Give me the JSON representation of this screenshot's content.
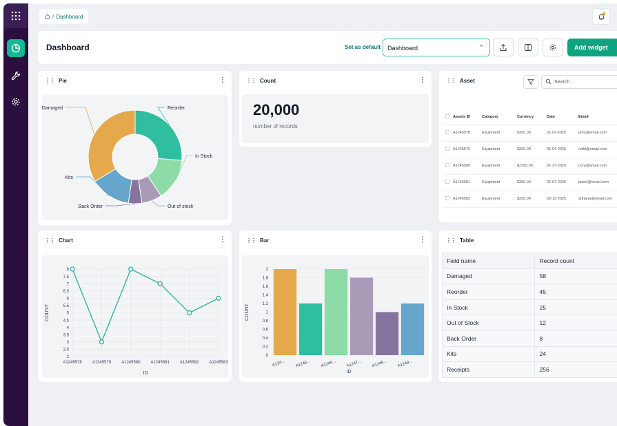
{
  "breadcrumb": {
    "current": "Dashboard"
  },
  "header": {
    "title": "Dashboard",
    "set_default": "Set as default",
    "selected_dashboard": "Dashboard",
    "add_widget": "Add widget"
  },
  "pie": {
    "title": "Pie",
    "chart_data": {
      "type": "pie",
      "title": "Pie",
      "categories": [
        "Damaged",
        "Reorder",
        "In Stock",
        "Out of stock",
        "Back Order",
        "Kits"
      ],
      "values": [
        58,
        45,
        25,
        12,
        8,
        24
      ],
      "colors": [
        "#e5a84b",
        "#2fbfa0",
        "#8ddba6",
        "#a99ab8",
        "#85759e",
        "#67a6cc"
      ]
    }
  },
  "count": {
    "title": "Count",
    "value": "20,000",
    "label": "number of records"
  },
  "asset": {
    "title": "Asset",
    "search_placeholder": "Search",
    "columns": [
      "Assets ID",
      "Category",
      "Currency",
      "Date",
      "Email"
    ],
    "rows": [
      [
        "A1245578",
        "Equipment",
        "$200.00",
        "01-02-2025",
        "amy@email.com"
      ],
      [
        "A1245579",
        "Equipment",
        "$200.00",
        "01-04-2025",
        "redd@email.com"
      ],
      [
        "A1245580",
        "Equipment",
        "$2350.00",
        "01-27-2025",
        "cory@email.com"
      ],
      [
        "A1245581",
        "Equipment",
        "$200.00",
        "02-07-2025",
        "jason@email.com"
      ],
      [
        "A1245582",
        "Equipment",
        "$325.00",
        "02-12-2025",
        "adriana@email.com"
      ]
    ]
  },
  "line": {
    "title": "Chart",
    "chart_data": {
      "type": "line",
      "x": [
        "A1245578",
        "A1245579",
        "A1245580",
        "A1245581",
        "A1245582",
        "A1245583"
      ],
      "values": [
        8,
        3,
        8,
        7,
        5,
        6
      ],
      "xlabel": "ID",
      "ylabel": "COUNT",
      "ylim": [
        2,
        8
      ],
      "yticks": [
        "2",
        "2.5",
        "3",
        "3.5",
        "4",
        "4.5",
        "5",
        "5.5",
        "6",
        "6.5",
        "7",
        "7.5",
        "8"
      ],
      "color": "#2bb5a0"
    }
  },
  "bar": {
    "title": "Bar",
    "chart_data": {
      "type": "bar",
      "categories": [
        "A124...",
        "A1245...",
        "A1246...",
        "A1247...",
        "A1248...",
        "A1249..."
      ],
      "values": [
        2,
        1.2,
        2,
        1.8,
        1,
        1.2
      ],
      "colors": [
        "#e5a84b",
        "#2fbfa0",
        "#8ddba6",
        "#a99ab8",
        "#85759e",
        "#67a6cc"
      ],
      "xlabel": "ID",
      "ylabel": "COUNT",
      "ylim": [
        0,
        2
      ],
      "yticks": [
        "0",
        "0.2",
        "0.4",
        "0.6",
        "0.8",
        "1",
        "1.2",
        "1.4",
        "1.6",
        "1.8",
        "2"
      ]
    }
  },
  "fields": {
    "title": "Table",
    "columns": [
      "Field name",
      "Record count"
    ],
    "rows": [
      [
        "Damaged",
        "58"
      ],
      [
        "Reorder",
        "45"
      ],
      [
        "In Stock",
        "25"
      ],
      [
        "Out of Stock",
        "12"
      ],
      [
        "Back Order",
        "8"
      ],
      [
        "Kits",
        "24"
      ],
      [
        "Receipts",
        "256"
      ]
    ]
  }
}
